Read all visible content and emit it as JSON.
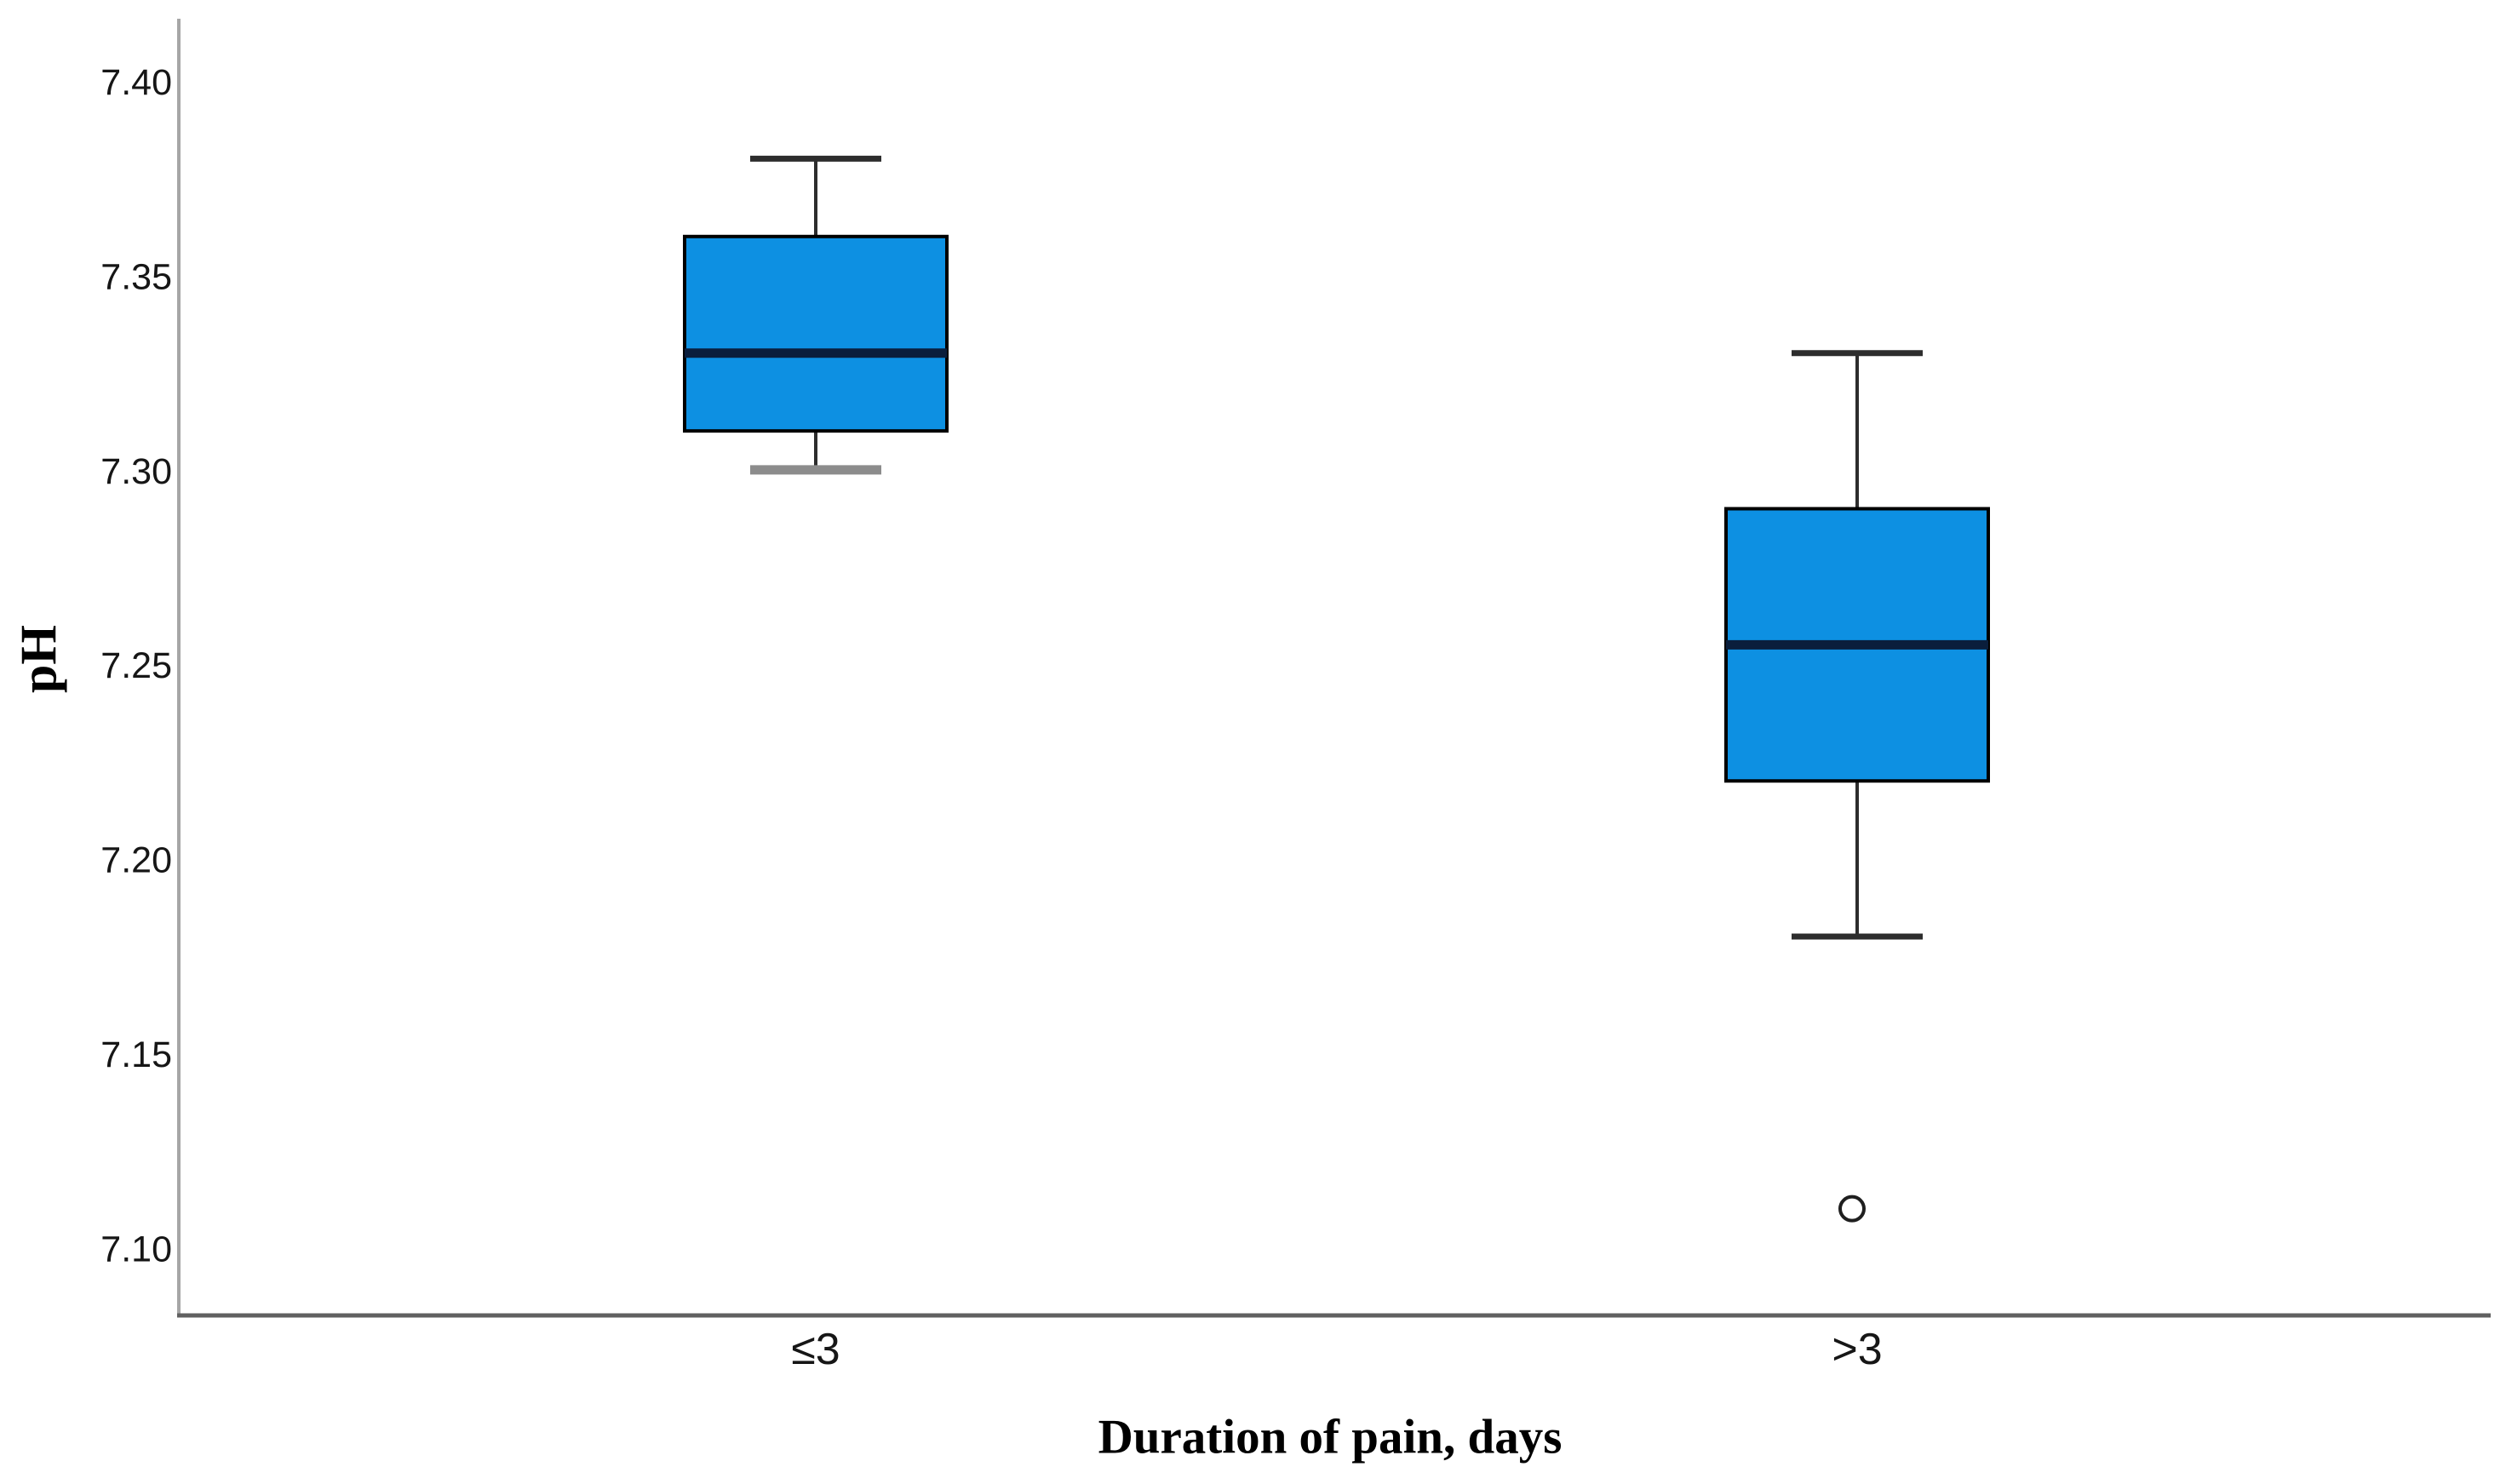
{
  "figure": {
    "background": "#ffffff"
  },
  "chart_data": {
    "type": "boxplot",
    "title": "",
    "xlabel": "Duration of pain, days",
    "ylabel": "pH",
    "ylim": [
      7.083,
      7.416
    ],
    "grid": false,
    "legend": false,
    "yticks": [
      {
        "value": 7.1,
        "label": "7.10"
      },
      {
        "value": 7.15,
        "label": "7.15"
      },
      {
        "value": 7.2,
        "label": "7.20"
      },
      {
        "value": 7.25,
        "label": "7.25"
      },
      {
        "value": 7.3,
        "label": "7.30"
      },
      {
        "value": 7.35,
        "label": "7.35"
      },
      {
        "value": 7.4,
        "label": "7.40"
      }
    ],
    "categories": [
      "≤3",
      ">3"
    ],
    "series": [
      {
        "category": "≤3",
        "whisker_low": 7.3,
        "q1": 7.31,
        "median": 7.33,
        "q3": 7.36,
        "whisker_high": 7.38,
        "outliers": [],
        "cap_low_variant": "gray"
      },
      {
        "category": ">3",
        "whisker_low": 7.18,
        "q1": 7.22,
        "median": 7.255,
        "q3": 7.29,
        "whisker_high": 7.33,
        "outliers": [
          7.11
        ],
        "cap_low_variant": "normal"
      }
    ],
    "colors": {
      "box_fill": "#0d90e2",
      "box_border": "#000000",
      "median": "#0a1e3c",
      "whisker": "#2d2d2d",
      "whisker_cap_gray": "#8c8c8c",
      "outlier_stroke": "#1f1f1f",
      "y_axis_line": "#a6a6a6",
      "x_axis_line": "#606060",
      "tick_text": "#161616"
    }
  }
}
